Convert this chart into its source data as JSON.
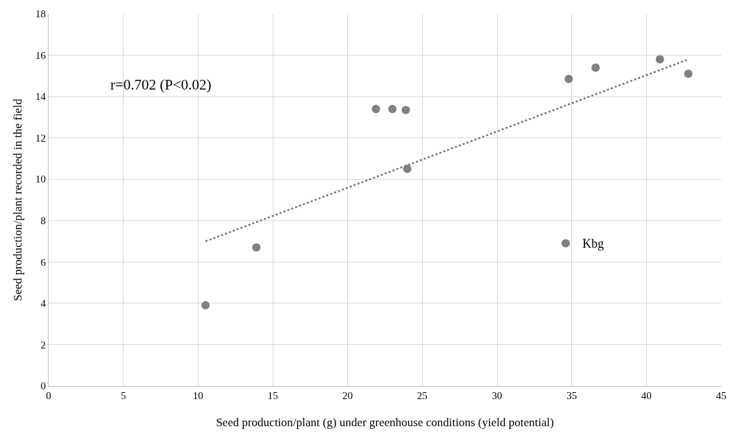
{
  "chart_data": {
    "type": "scatter",
    "xlabel": "Seed production/plant (g) under greenhouse conditions (yield potential)",
    "ylabel": "Seed production/plant recorded in the field",
    "xlim": [
      0,
      45
    ],
    "xticks": [
      0,
      5,
      10,
      15,
      20,
      25,
      30,
      35,
      40,
      45
    ],
    "ylim": [
      0,
      18
    ],
    "yticks": [
      0,
      2,
      4,
      6,
      8,
      10,
      12,
      14,
      16,
      18
    ],
    "grid": true,
    "series": [
      {
        "color": "#808080",
        "marker": "circle",
        "x": [
          10.5,
          13.9,
          21.9,
          23.0,
          23.9,
          24.0,
          34.6,
          34.8,
          36.6,
          40.9,
          42.8
        ],
        "values": [
          3.9,
          6.7,
          13.4,
          13.4,
          13.35,
          10.5,
          6.9,
          14.85,
          15.4,
          15.8,
          15.1
        ]
      },
      {
        "type": "line",
        "color": "#767676",
        "line_style": "dotted",
        "marker": "none",
        "x": [
          10.5,
          42.8
        ],
        "values": [
          7.0,
          15.8
        ]
      }
    ],
    "annotations": [
      "r=0.702 (P<0.02)",
      {
        "text": "Kbg",
        "x": 34.6,
        "y": 6.9
      }
    ]
  }
}
